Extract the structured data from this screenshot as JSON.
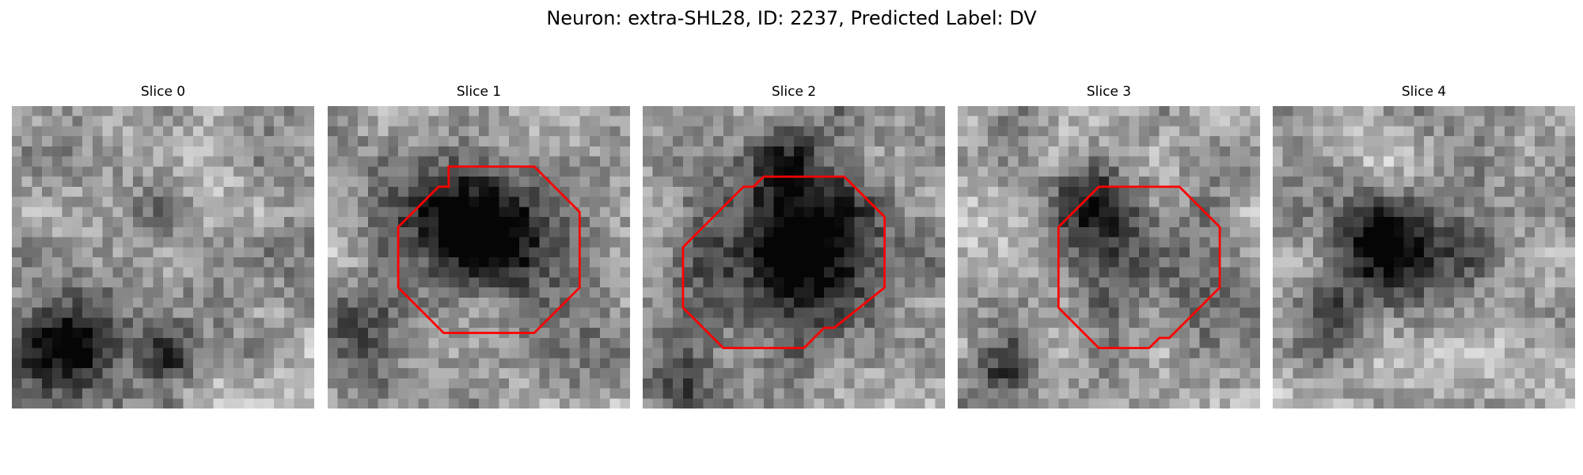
{
  "figure": {
    "title": "Neuron: extra-SHL28, ID: 2237, Predicted Label: DV"
  },
  "colors": {
    "contour": "#ff0000",
    "background": "#ffffff",
    "colormap": "gray"
  },
  "panels": [
    {
      "title": "Slice 0",
      "has_contour": false
    },
    {
      "title": "Slice 1",
      "has_contour": true
    },
    {
      "title": "Slice 2",
      "has_contour": true
    },
    {
      "title": "Slice 3",
      "has_contour": true
    },
    {
      "title": "Slice 4",
      "has_contour": false
    }
  ]
}
